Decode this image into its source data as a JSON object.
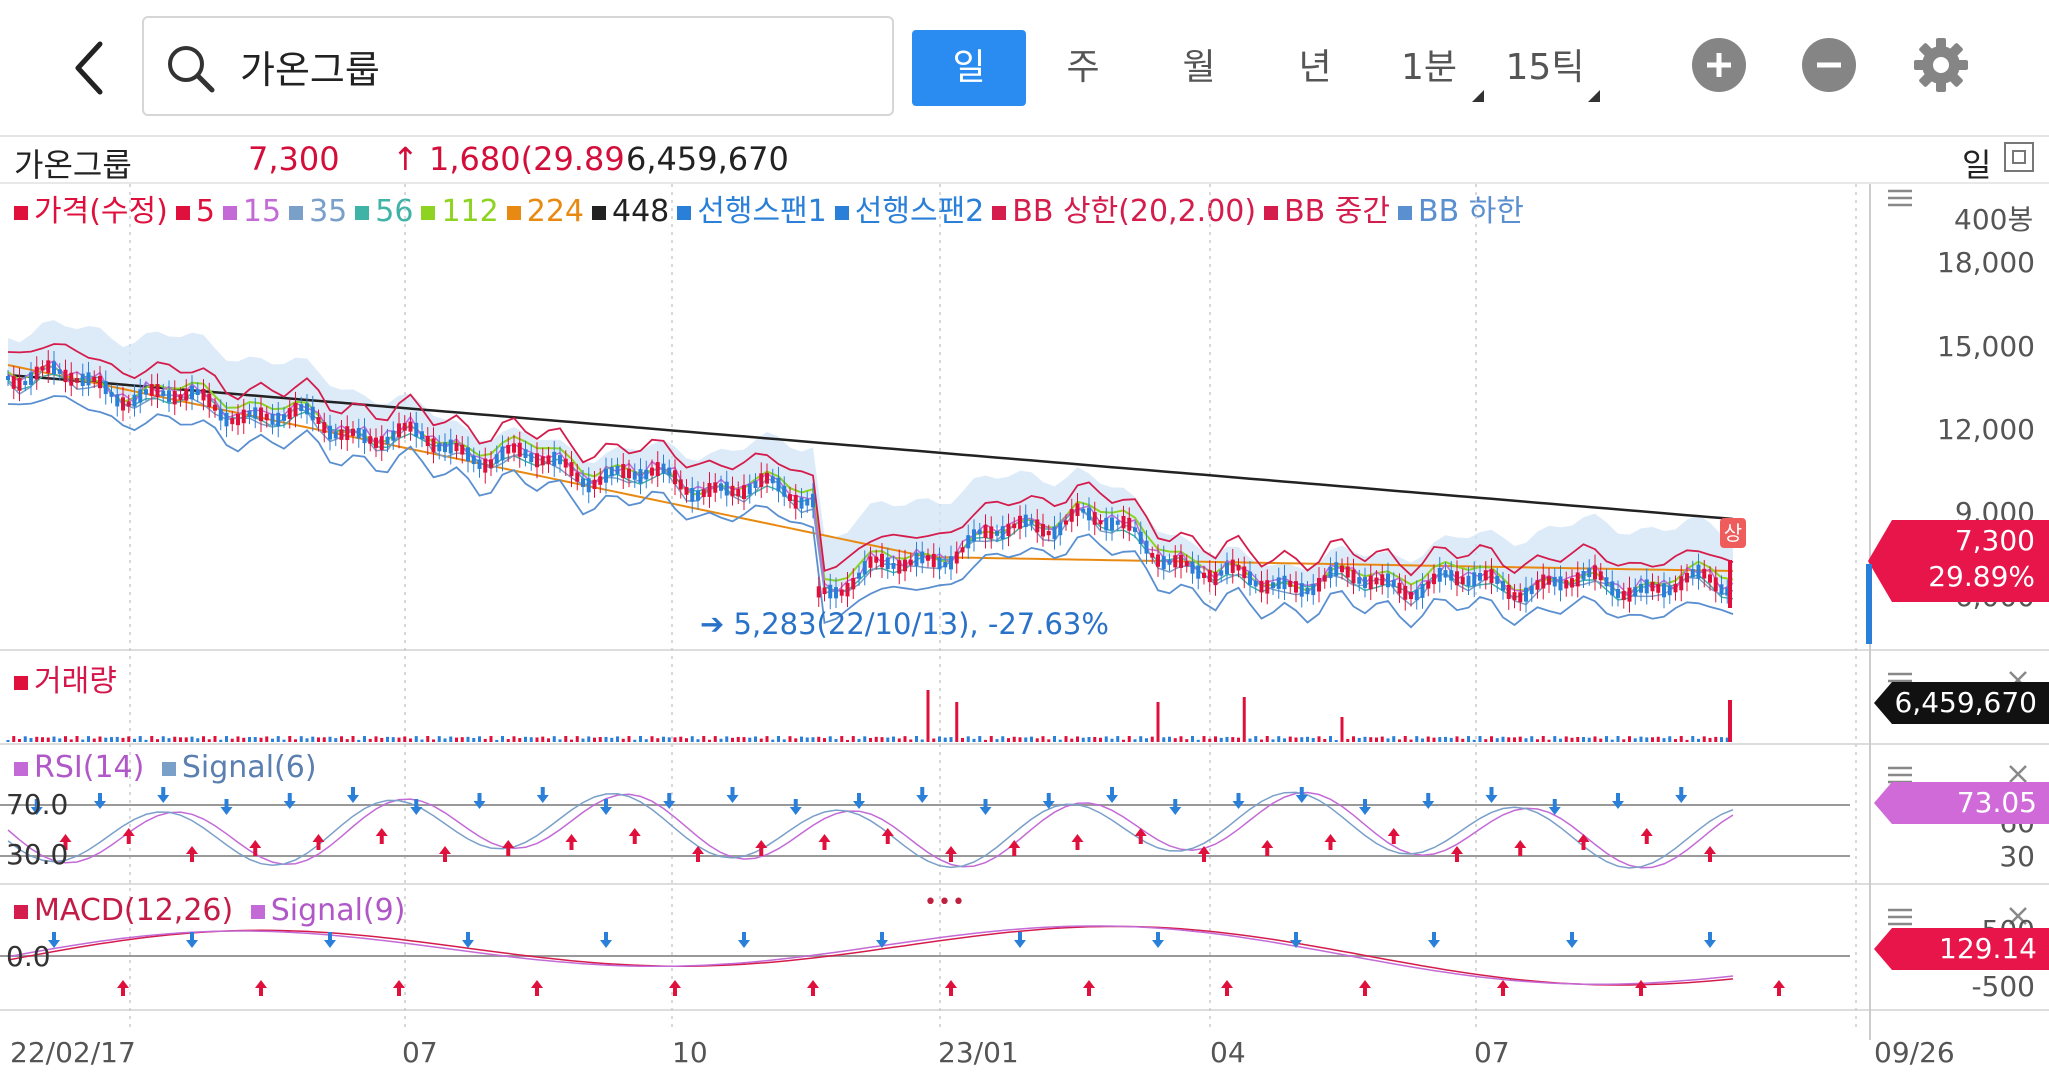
{
  "header": {
    "search_value": "가온그룹",
    "period_tabs": [
      "일",
      "주",
      "월",
      "년",
      "1분",
      "15틱"
    ],
    "active_tab": "일"
  },
  "info": {
    "name": "가온그룹",
    "price": "7,300",
    "change": "↑ 1,680(29.89",
    "volume": "6,459,670",
    "period": "일"
  },
  "legend": [
    {
      "label": "가격(수정)",
      "color": "#e0103c"
    },
    {
      "label": "5",
      "color": "#e0103c"
    },
    {
      "label": "15",
      "color": "#c36ad6"
    },
    {
      "label": "35",
      "color": "#7a9fc8"
    },
    {
      "label": "56",
      "color": "#3fb3a5"
    },
    {
      "label": "112",
      "color": "#8ed321"
    },
    {
      "label": "224",
      "color": "#e88a12"
    },
    {
      "label": "448",
      "color": "#222222"
    },
    {
      "label": "선행스팬1",
      "color": "#2a7fd8"
    },
    {
      "label": "선행스팬2",
      "color": "#2a7fd8"
    },
    {
      "label": "BB 상한(20,2.00)",
      "color": "#d41d4c"
    },
    {
      "label": "BB 중간",
      "color": "#d41d4c"
    },
    {
      "label": "BB 하한",
      "color": "#5a8fd0"
    }
  ],
  "price_axis": {
    "unit": "400봉",
    "ticks": [
      "18,000",
      "15,000",
      "12,000",
      "9,000",
      "6,000"
    ]
  },
  "price_tag": {
    "price": "7,300",
    "pct": "29.89%"
  },
  "low_annotation": "5,283(22/10/13), -27.63%",
  "upper_limit_badge": "상",
  "volume_panel": {
    "label": "거래량",
    "tag": "6,459,670"
  },
  "rsi_panel": {
    "label": "RSI(14)",
    "signal": "Signal(6)",
    "levels": [
      "70.0",
      "30.0"
    ],
    "right_ticks": [
      "60",
      "30"
    ],
    "tag": "73.05"
  },
  "macd_panel": {
    "label": "MACD(12,26)",
    "signal": "Signal(9)",
    "zero": "0.0",
    "right_ticks": [
      "500",
      "-500"
    ],
    "tag": "129.14"
  },
  "x_axis": [
    "22/02/17",
    "07",
    "10",
    "23/01",
    "04",
    "07",
    "09/26"
  ],
  "colors": {
    "accent": "#2a8cf0",
    "up": "#e0103c",
    "down": "#2a7fd8",
    "rsi": "#c36ad6"
  },
  "icons": [
    "back-arrow-icon",
    "search-icon",
    "zoom-in-icon",
    "zoom-out-icon",
    "gear-icon",
    "menu-icon",
    "close-icon",
    "expand-icon"
  ]
}
